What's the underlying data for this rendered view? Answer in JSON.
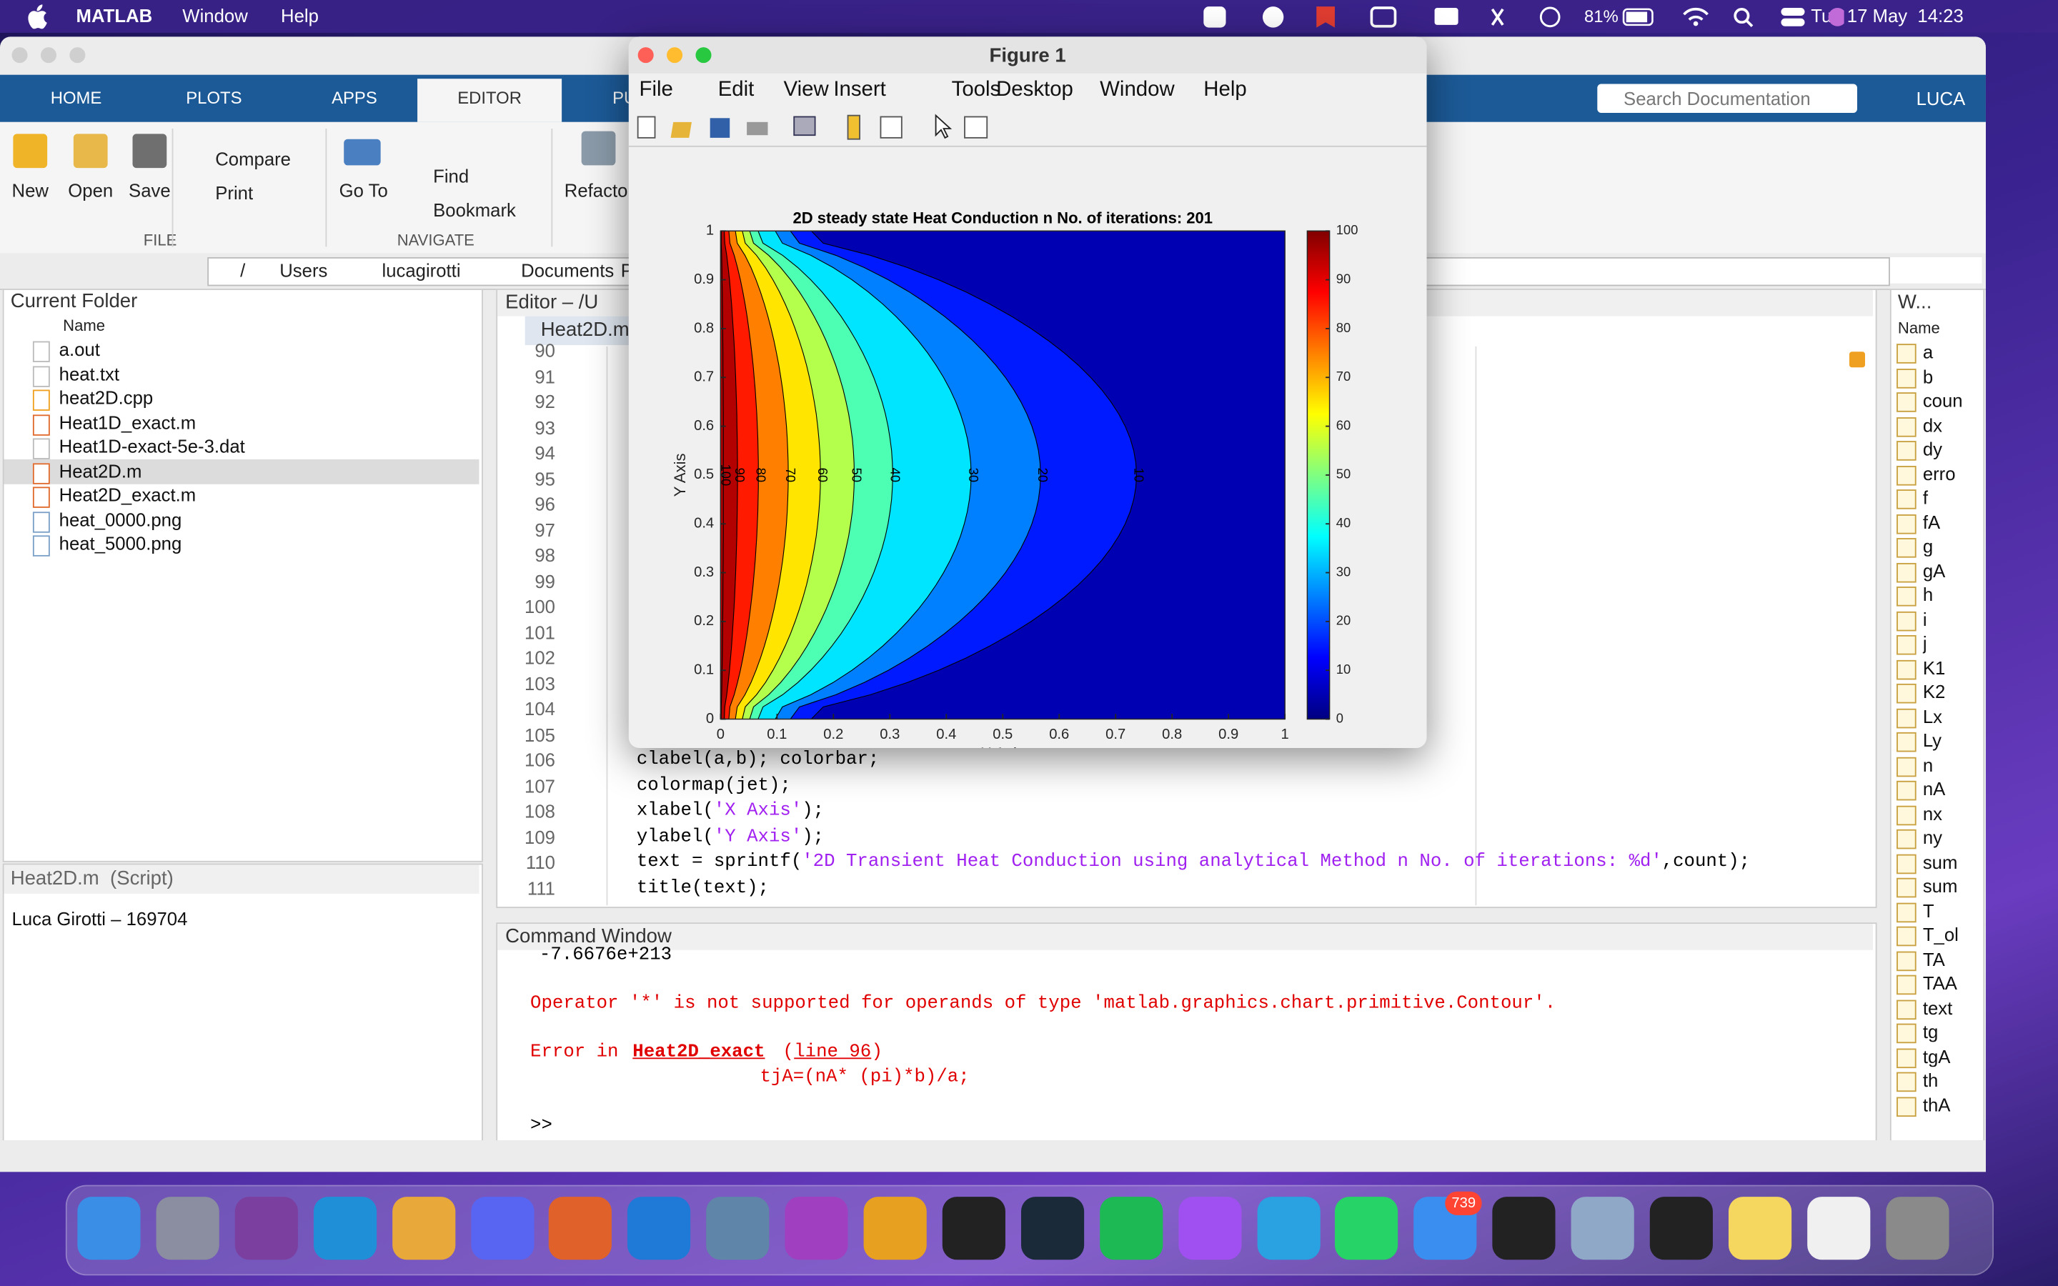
{
  "menubar": {
    "app": "MATLAB",
    "items": [
      "Window",
      "Help"
    ],
    "battery": "81%",
    "clock": "Tue 17 May  14:23"
  },
  "toolstrip": {
    "tabs": [
      "HOME",
      "PLOTS",
      "APPS",
      "EDITOR",
      "PUB"
    ],
    "active_tab": 3,
    "search": "Search Documentation",
    "user": "LUCA",
    "file_group": {
      "label": "FILE",
      "buttons": [
        "New",
        "Open",
        "Save",
        "Compare",
        "Print"
      ]
    },
    "navigate_group": {
      "label": "NAVIGATE",
      "buttons": [
        "Go To",
        "Find",
        "Bookmark"
      ]
    },
    "refactor": "Refacto"
  },
  "address_bar": {
    "path": [
      "/",
      "Users",
      "lucagirotti",
      "Documents",
      "P"
    ]
  },
  "current_folder": {
    "title": "Current Folder",
    "column": "Name",
    "files": [
      "a.out",
      "heat.txt",
      "heat2D.cpp",
      "Heat1D_exact.m",
      "Heat1D-exact-5e-3.dat",
      "Heat2D.m",
      "Heat2D_exact.m",
      "heat_0000.png",
      "heat_5000.png"
    ],
    "selected": 5,
    "details_title": "Heat2D.m  (Script)",
    "details_text": "Luca Girotti – 169704"
  },
  "editor": {
    "title": "Editor – /U",
    "tab": "Heat2D.m",
    "lines": [
      {
        "number": "90"
      },
      {
        "number": "91"
      },
      {
        "number": "92"
      },
      {
        "number": "93"
      },
      {
        "number": "94"
      },
      {
        "number": "95"
      },
      {
        "number": "96"
      },
      {
        "number": "97"
      },
      {
        "number": "98"
      },
      {
        "number": "99"
      },
      {
        "number": "100"
      },
      {
        "number": "101"
      },
      {
        "number": "102"
      },
      {
        "number": "103"
      },
      {
        "number": "104"
      },
      {
        "number": "105"
      },
      {
        "number": "106",
        "code": [
          {
            "text": "clabel(a,b); colorbar;"
          }
        ]
      },
      {
        "number": "107",
        "code": [
          {
            "text": "colormap(jet);"
          }
        ]
      },
      {
        "number": "108",
        "code": [
          {
            "text": "xlabel("
          },
          {
            "text": "'X Axis'",
            "kind": "string"
          },
          {
            "text": ");"
          }
        ]
      },
      {
        "number": "109",
        "code": [
          {
            "text": "ylabel("
          },
          {
            "text": "'Y Axis'",
            "kind": "string"
          },
          {
            "text": ");"
          }
        ]
      },
      {
        "number": "110",
        "code": [
          {
            "text": "text = sprintf("
          },
          {
            "text": "'2D Transient Heat Conduction using analytical Method n No. of iterations: %d'",
            "kind": "string"
          },
          {
            "text": ",count);"
          }
        ]
      },
      {
        "number": "111",
        "code": [
          {
            "text": "title(text);"
          }
        ]
      }
    ]
  },
  "command_window": {
    "title": "Command Window",
    "output": "-7.6676e+213",
    "error": "Operator '*' is not supported for operands of type 'matlab.graphics.chart.primitive.Contour'.",
    "error_in": "Error in ",
    "error_function": "Heat2D_exact",
    "error_open": " (",
    "error_line": "line 96",
    "error_close": ")",
    "error_code": "tjA=(nA* (pi)*b)/a;",
    "prompt": ">>"
  },
  "workspace": {
    "title": "W...",
    "column": "Name",
    "variables": [
      "a",
      "b",
      "coun",
      "dx",
      "dy",
      "erro",
      "f",
      "fA",
      "g",
      "gA",
      "h",
      "i",
      "j",
      "K1",
      "K2",
      "Lx",
      "Ly",
      "n",
      "nA",
      "nx",
      "ny",
      "sum",
      "sum",
      "T",
      "T_ol",
      "TA",
      "TAA",
      "text",
      "tg",
      "tgA",
      "th",
      "thA"
    ]
  },
  "figure": {
    "title": "Figure 1",
    "menu": [
      "File",
      "Edit",
      "View",
      "Insert",
      "Tools",
      "Desktop",
      "Window",
      "Help"
    ],
    "chart_data": {
      "type": "contour",
      "title": "2D steady state Heat Conduction n No. of iterations: 201",
      "xlabel": "X Axis",
      "ylabel": "Y Axis",
      "xlim": [
        0,
        1
      ],
      "ylim": [
        0,
        1
      ],
      "xticks": [
        0,
        0.1,
        0.2,
        0.3,
        0.4,
        0.5,
        0.6,
        0.7,
        0.8,
        0.9,
        1
      ],
      "yticks": [
        0,
        0.1,
        0.2,
        0.3,
        0.4,
        0.5,
        0.6,
        0.7,
        0.8,
        0.9,
        1
      ],
      "colormap": "jet",
      "clim": [
        0,
        100
      ],
      "colorbar_ticks": [
        0,
        10,
        20,
        30,
        40,
        50,
        60,
        70,
        80,
        90,
        100
      ],
      "contours": [
        {
          "level": 10,
          "x_mid": 0.737
        },
        {
          "level": 20,
          "x_mid": 0.567
        },
        {
          "level": 30,
          "x_mid": 0.444
        },
        {
          "level": 40,
          "x_mid": 0.305
        },
        {
          "level": 50,
          "x_mid": 0.237
        },
        {
          "level": 60,
          "x_mid": 0.177
        },
        {
          "level": 70,
          "x_mid": 0.12
        },
        {
          "level": 80,
          "x_mid": 0.067
        },
        {
          "level": 90,
          "x_mid": 0.03
        },
        {
          "level": 100,
          "x_mid": 0.005
        }
      ]
    }
  },
  "dock": {
    "mail_badge": "739"
  }
}
